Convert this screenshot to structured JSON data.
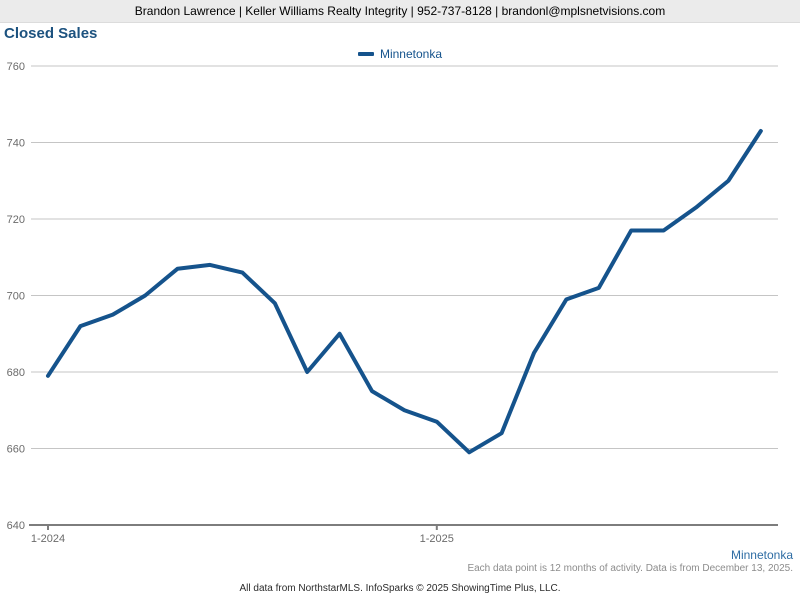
{
  "header": {
    "contact_line": "Brandon Lawrence | Keller Williams Realty Integrity | 952-737-8128 | brandonl@mplsnetvisions.com"
  },
  "title": "Closed Sales",
  "legend": {
    "label": "Minnetonka"
  },
  "footer": {
    "area_link": "Minnetonka",
    "note": "Each data point is 12 months of activity. Data is from December 13, 2025.",
    "attribution": "All data from NorthstarMLS. InfoSparks © 2025 ShowingTime Plus, LLC."
  },
  "colors": {
    "line": "#15538c",
    "title": "#1c527f",
    "legend_text": "#15538c",
    "area_link": "#2f6da4",
    "gridline": "#c5c5c5",
    "axis": "#7d7d7d",
    "axis_label": "#6b6b6b",
    "header_bg": "#ebebeb"
  },
  "chart_data": {
    "type": "line",
    "title": "Closed Sales",
    "x": [
      "1-2024",
      "2-2024",
      "3-2024",
      "4-2024",
      "5-2024",
      "6-2024",
      "7-2024",
      "8-2024",
      "9-2024",
      "10-2024",
      "11-2024",
      "12-2024",
      "1-2025",
      "2-2025",
      "3-2025",
      "4-2025",
      "5-2025",
      "6-2025",
      "7-2025",
      "8-2025",
      "9-2025",
      "10-2025",
      "11-2025"
    ],
    "series": [
      {
        "name": "Minnetonka",
        "values": [
          679,
          692,
          695,
          700,
          707,
          708,
          706,
          698,
          680,
          690,
          675,
          670,
          667,
          659,
          664,
          685,
          699,
          702,
          717,
          717,
          723,
          730,
          743
        ]
      }
    ],
    "x_ticks": [
      {
        "label": "1-2024",
        "index": 0
      },
      {
        "label": "1-2025",
        "index": 12
      }
    ],
    "ylim": [
      640,
      760
    ],
    "y_ticks": [
      640,
      660,
      680,
      700,
      720,
      740,
      760
    ],
    "grid": "horizontal",
    "legend_position": "top-center"
  }
}
